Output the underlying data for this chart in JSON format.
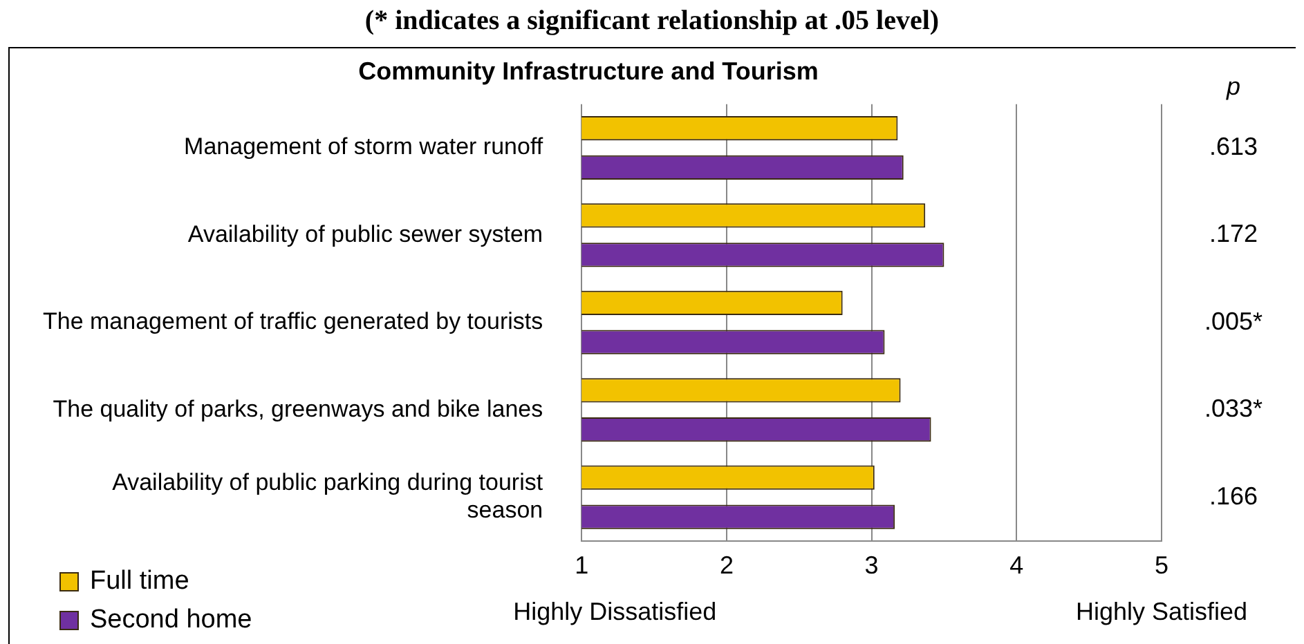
{
  "chart_data": {
    "type": "bar",
    "orientation": "horizontal",
    "title": "Community Infrastructure and Tourism",
    "subtitle": "(* indicates a significant relationship at .05 level)",
    "categories": [
      "Management of storm water runoff",
      "Availability of public sewer system",
      "The management of traffic generated by tourists",
      "The quality of parks, greenways and bike lanes",
      "Availability of public parking during tourist season"
    ],
    "series": [
      {
        "name": "Full time",
        "color": "#f2c200",
        "values": [
          3.18,
          3.37,
          2.8,
          3.2,
          3.02
        ]
      },
      {
        "name": "Second home",
        "color": "#7030a0",
        "values": [
          3.22,
          3.5,
          3.09,
          3.41,
          3.16
        ]
      }
    ],
    "xlim": [
      1,
      5
    ],
    "xticks": [
      1,
      2,
      3,
      4,
      5
    ],
    "grid": "x",
    "legend": "bottom left",
    "annotations": [
      "p",
      ".613",
      ".172",
      ".005*",
      ".033*",
      ".166",
      "Highly Dissatisfied",
      "Highly Satisfied"
    ]
  }
}
